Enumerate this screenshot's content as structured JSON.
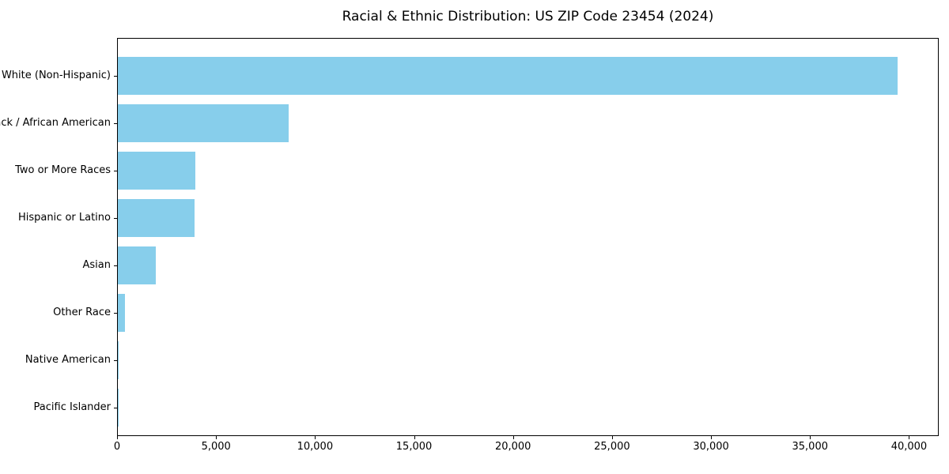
{
  "chart_data": {
    "type": "bar",
    "orientation": "horizontal",
    "title": "Racial & Ethnic Distribution: US ZIP Code 23454 (2024)",
    "categories": [
      "White (Non-Hispanic)",
      "Black / African American",
      "Two or More Races",
      "Hispanic or Latino",
      "Asian",
      "Other Race",
      "Native American",
      "Pacific Islander"
    ],
    "values": [
      39450,
      8650,
      3940,
      3900,
      1940,
      350,
      50,
      15
    ],
    "xlabel": "",
    "ylabel": "",
    "xlim": [
      0,
      41500
    ],
    "xticks": [
      0,
      5000,
      10000,
      15000,
      20000,
      25000,
      30000,
      35000,
      40000
    ],
    "xtick_labels": [
      "0",
      "5,000",
      "10,000",
      "15,000",
      "20,000",
      "25,000",
      "30,000",
      "35,000",
      "40,000"
    ],
    "grid": false,
    "legend_position": "none",
    "bar_color": "#87CEEB",
    "axis_color": "#000000",
    "background_color": "#ffffff"
  }
}
